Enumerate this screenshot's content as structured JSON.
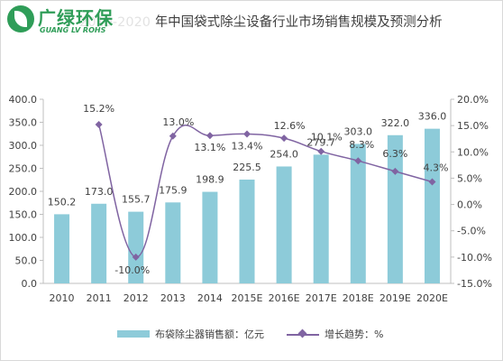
{
  "title": "2010-2020 年中国袋式除尘设备行业市场销售规模及预测分析",
  "logo": {
    "cn": "广绿环保",
    "en": "GUANG LV ROHS"
  },
  "colors": {
    "bar": "#8dcbd9",
    "line": "#8064a2",
    "marker": "#8064a2",
    "axis": "#404040",
    "grid": "#d9d9d9"
  },
  "chart_data": {
    "type": "bar",
    "categories": [
      "2010",
      "2011",
      "2012",
      "2013",
      "2014",
      "2015E",
      "2016E",
      "2017E",
      "2018E",
      "2019E",
      "2020E"
    ],
    "series": [
      {
        "name": "布袋除尘器销售额：亿元",
        "type": "bar",
        "axis": "left",
        "values": [
          150.2,
          173.0,
          155.7,
          175.9,
          198.9,
          225.5,
          254.0,
          279.7,
          303.0,
          322.0,
          336.0
        ],
        "labels": [
          "150.2",
          "173.0",
          "155.7",
          "175.9",
          "198.9",
          "225.5",
          "254.0",
          "279.7",
          "303.0",
          "322.0",
          "336.0"
        ]
      },
      {
        "name": "增长趋势：%",
        "type": "line",
        "axis": "right",
        "values": [
          null,
          15.2,
          -10.0,
          13.0,
          13.1,
          13.4,
          12.6,
          10.1,
          8.3,
          6.3,
          4.3
        ],
        "labels": [
          null,
          "15.2%",
          "-10.0%",
          "13.0%",
          "13.1%",
          "13.4%",
          "12.6%",
          "10.1%",
          "8.3%",
          "6.3%",
          "4.3%"
        ]
      }
    ],
    "left_axis": {
      "ylim": [
        0,
        400
      ],
      "ticks": [
        "0.0",
        "50.0",
        "100.0",
        "150.0",
        "200.0",
        "250.0",
        "300.0",
        "350.0",
        "400.0"
      ]
    },
    "right_axis": {
      "ylim": [
        -15,
        20
      ],
      "ticks": [
        "-15.0%",
        "-10.0%",
        "-5.0%",
        "0.0%",
        "5.0%",
        "10.0%",
        "15.0%",
        "20.0%"
      ]
    },
    "grid": false,
    "legend": "bottom"
  }
}
